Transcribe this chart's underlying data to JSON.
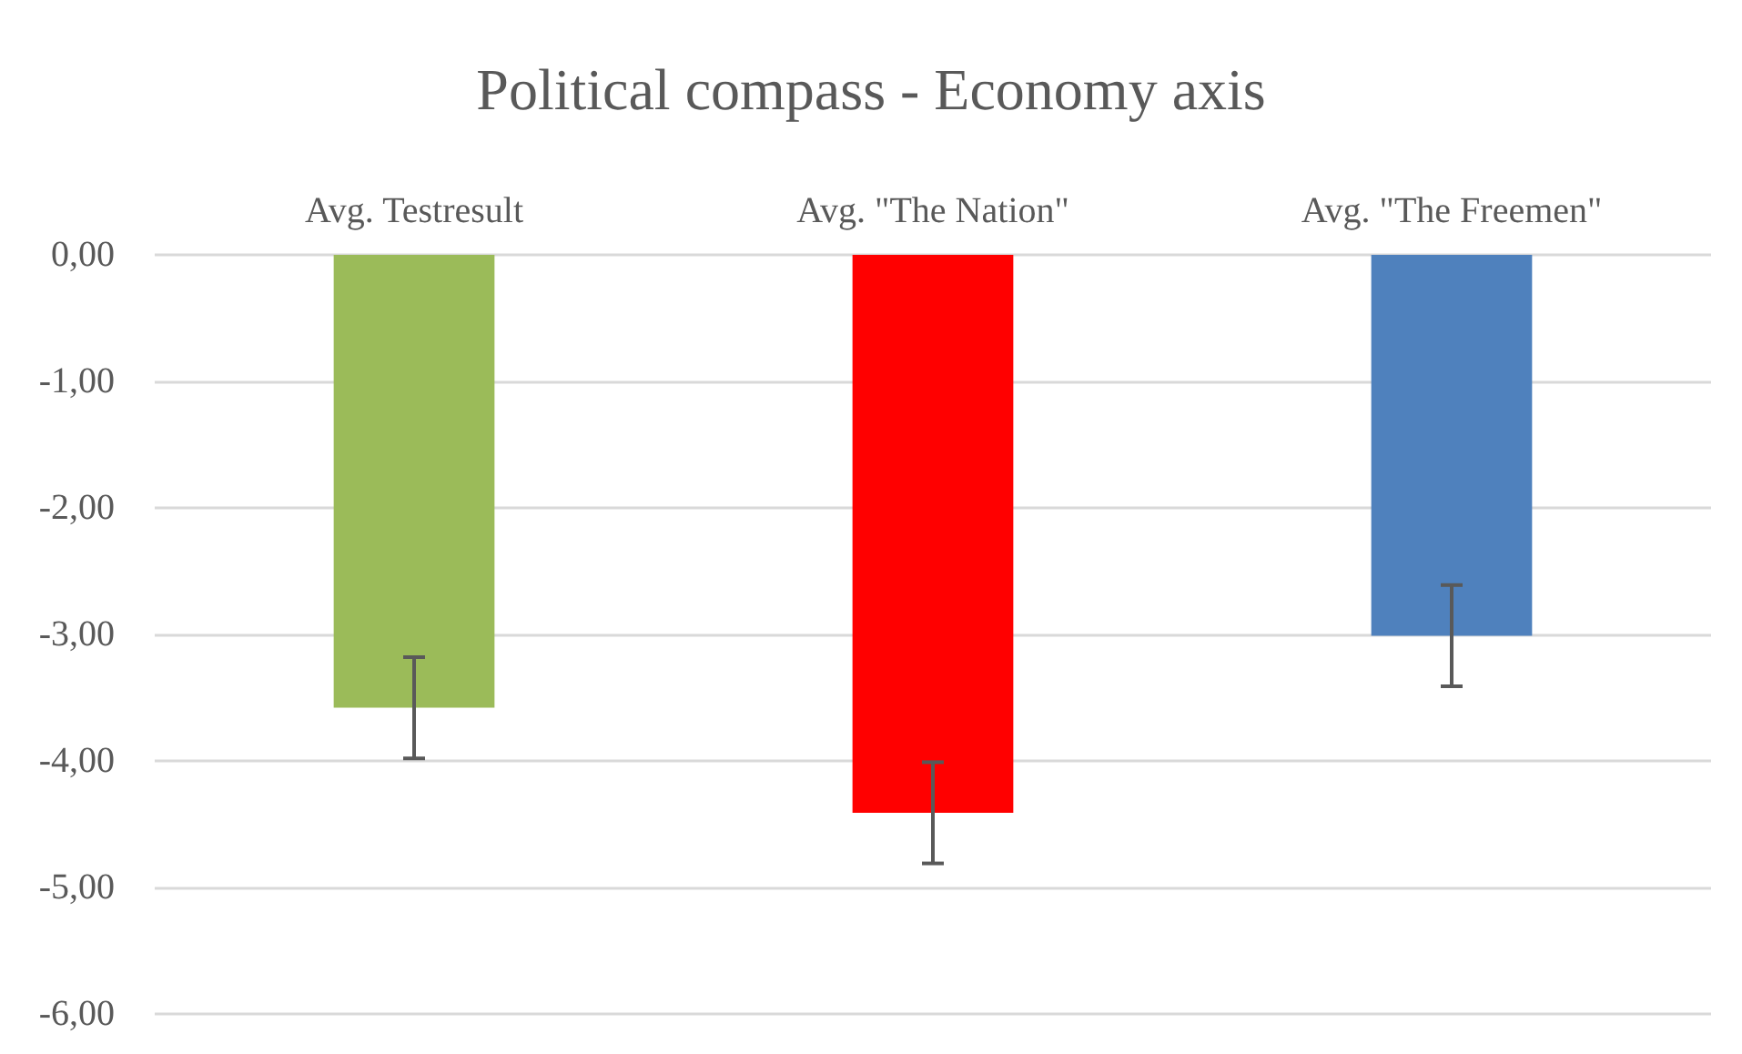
{
  "chart_data": {
    "type": "bar",
    "title": "Political compass - Economy axis",
    "categories": [
      "Avg. Testresult",
      "Avg. \"The Nation\"",
      "Avg. \"The Freemen\""
    ],
    "values": [
      -3.58,
      -4.41,
      -3.01
    ],
    "colors": [
      "#9bbb59",
      "#ff0000",
      "#4f81bd"
    ],
    "errors": [
      0.4,
      0.4,
      0.4
    ],
    "ylim": [
      -6,
      0
    ],
    "yticks": [
      {
        "value": -6,
        "label": "-6,00"
      },
      {
        "value": -5,
        "label": "-5,00"
      },
      {
        "value": -4,
        "label": "-4,00"
      },
      {
        "value": -3,
        "label": "-3,00"
      },
      {
        "value": -2,
        "label": "-2,00"
      },
      {
        "value": -1,
        "label": "-1,00"
      },
      {
        "value": 0,
        "label": "0,00"
      }
    ],
    "grid": "y"
  }
}
